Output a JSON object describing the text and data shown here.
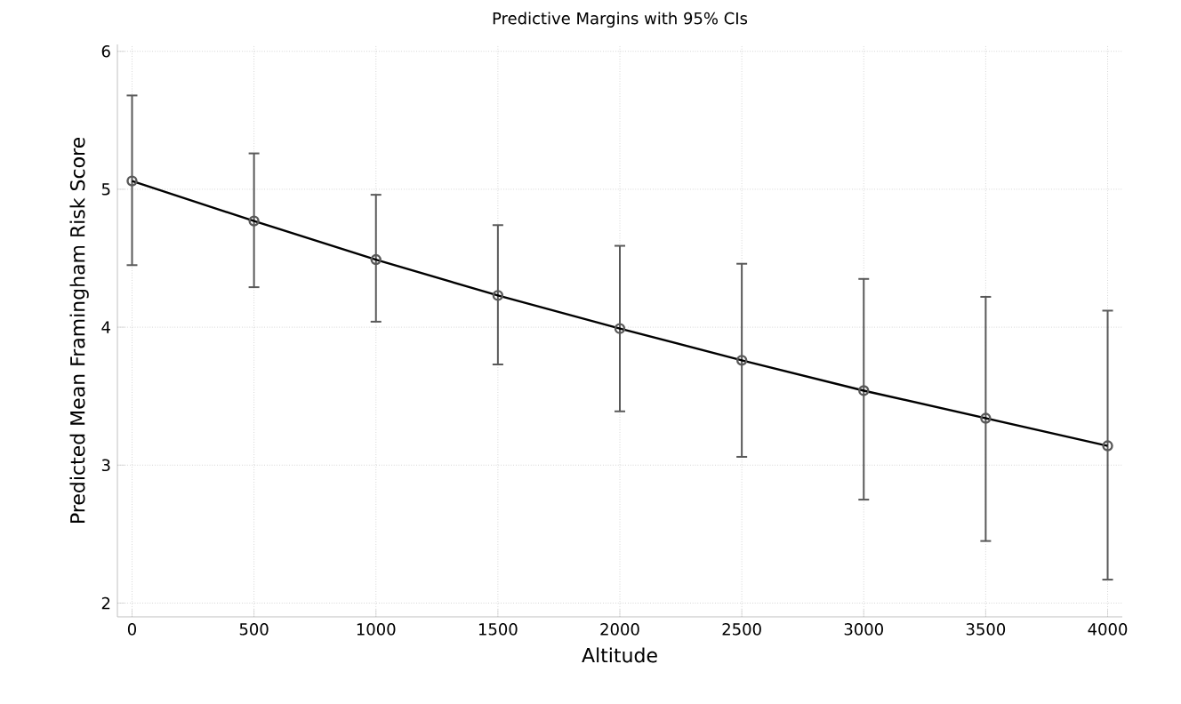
{
  "chart_data": {
    "type": "line",
    "title": "Predictive Margins with 95% CIs",
    "xlabel": "Altitude",
    "ylabel": "Predicted Mean Framingham Risk Score",
    "x": [
      0,
      500,
      1000,
      1500,
      2000,
      2500,
      3000,
      3500,
      4000
    ],
    "series": [
      {
        "color": "#000000",
        "values": [
          5.06,
          4.77,
          4.49,
          4.23,
          3.99,
          3.76,
          3.54,
          3.34,
          3.14
        ],
        "errors": [
          [
            4.45,
            5.68
          ],
          [
            4.29,
            5.26
          ],
          [
            4.04,
            4.96
          ],
          [
            3.73,
            4.74
          ],
          [
            3.39,
            4.59
          ],
          [
            3.06,
            4.46
          ],
          [
            2.75,
            4.35
          ],
          [
            2.45,
            4.22
          ],
          [
            2.17,
            4.12
          ]
        ]
      }
    ],
    "xlim": [
      -60,
      4060
    ],
    "ylim": [
      1.9,
      6.05
    ],
    "xticks": [
      0,
      500,
      1000,
      1500,
      2000,
      2500,
      3000,
      3500,
      4000
    ],
    "yticks": [
      2,
      3,
      4,
      5,
      6
    ],
    "grid": true,
    "marker": "circle",
    "line_style": "solid"
  }
}
